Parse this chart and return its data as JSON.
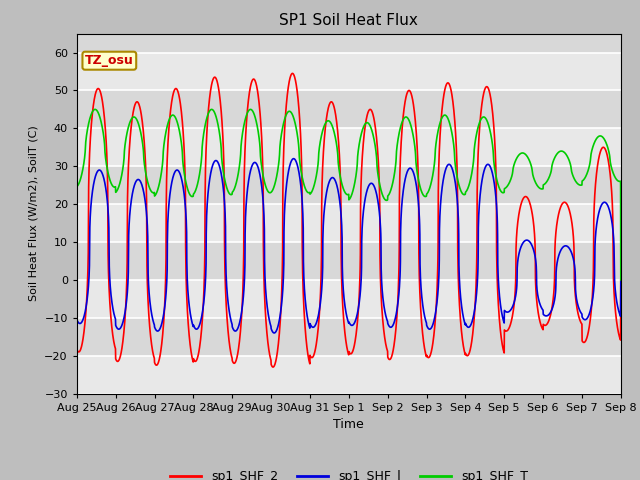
{
  "title": "SP1 Soil Heat Flux",
  "xlabel": "Time",
  "ylabel": "Soil Heat Flux (W/m2), SoilT (C)",
  "ylim": [
    -30,
    65
  ],
  "yticks": [
    -30,
    -20,
    -10,
    0,
    10,
    20,
    30,
    40,
    50,
    60
  ],
  "fig_bg": "#c8c8c8",
  "plot_bg": "#e0e0e0",
  "legend_labels": [
    "sp1_SHF_2",
    "sp1_SHF_l",
    "sp1_SHF_T"
  ],
  "legend_colors": [
    "#ff0000",
    "#0000dd",
    "#00cc00"
  ],
  "tz_label": "TZ_osu",
  "x_tick_labels": [
    "Aug 25",
    "Aug 26",
    "Aug 27",
    "Aug 28",
    "Aug 29",
    "Aug 30",
    "Aug 31",
    "Sep 1",
    "Sep 2",
    "Sep 3",
    "Sep 4",
    "Sep 5",
    "Sep 6",
    "Sep 7",
    "Sep 8"
  ],
  "num_days": 14,
  "shf2_peaks": [
    50.5,
    47.0,
    50.5,
    53.5,
    53.0,
    54.5,
    47.0,
    45.0,
    50.0,
    52.0,
    51.0,
    22.0,
    20.5,
    35.0
  ],
  "shf2_troughs": [
    -19.0,
    -21.5,
    -22.5,
    -21.5,
    -22.0,
    -23.0,
    -20.5,
    -19.5,
    -21.0,
    -20.5,
    -20.0,
    -13.5,
    -12.0,
    -16.5
  ],
  "shfl_peaks": [
    29.0,
    26.5,
    29.0,
    31.5,
    31.0,
    32.0,
    27.0,
    25.5,
    29.5,
    30.5,
    30.5,
    10.5,
    9.0,
    20.5
  ],
  "shfl_troughs": [
    -11.5,
    -13.0,
    -13.5,
    -13.0,
    -13.5,
    -14.0,
    -12.5,
    -12.0,
    -12.5,
    -13.0,
    -12.5,
    -8.5,
    -9.5,
    -10.5
  ],
  "shft_peaks": [
    45.0,
    43.0,
    43.5,
    45.0,
    45.0,
    44.5,
    42.0,
    41.5,
    43.0,
    43.5,
    43.0,
    33.5,
    34.0,
    38.0
  ],
  "shft_troughs": [
    24.5,
    23.0,
    22.0,
    22.5,
    23.0,
    23.0,
    22.5,
    21.0,
    22.0,
    22.5,
    23.0,
    24.0,
    25.0,
    26.0
  ]
}
